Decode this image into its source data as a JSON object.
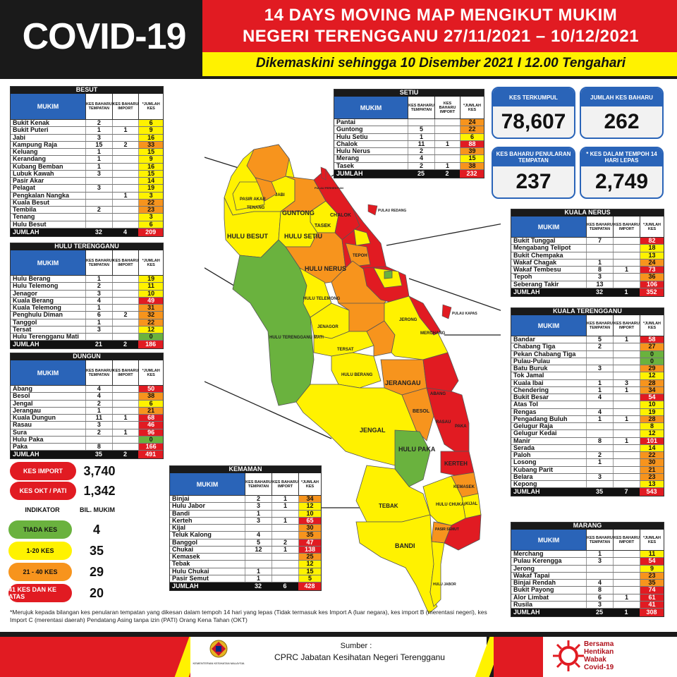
{
  "header": {
    "covid_title": "COVID-19",
    "title_line1": "14 DAYS MOVING MAP MENGIKUT MUKIM",
    "title_line2": "NEGERI TERENGGANU 27/11/2021 – 10/12/2021",
    "subtitle": "Dikemaskini sehingga 10 Disember 2021 I 12.00 Tengahari"
  },
  "col_headers": {
    "mukim": "MUKIM",
    "baharu_tempatan": "KES BAHARU TEMPATAN",
    "baharu_import": "KES BAHARU IMPORT",
    "jumlah": "*JUMLAH KES",
    "total_label": "JUMLAH"
  },
  "besut": {
    "title": "BESUT",
    "rows": [
      {
        "mukim": "Bukit Kenak",
        "tempatan": "2",
        "import": "",
        "jumlah": "6",
        "color": "#fff200"
      },
      {
        "mukim": "Bukit Puteri",
        "tempatan": "1",
        "import": "1",
        "jumlah": "9",
        "color": "#fff200"
      },
      {
        "mukim": "Jabi",
        "tempatan": "3",
        "import": "",
        "jumlah": "16",
        "color": "#fff200"
      },
      {
        "mukim": "Kampung Raja",
        "tempatan": "15",
        "import": "2",
        "jumlah": "33",
        "color": "#f7941d"
      },
      {
        "mukim": "Keluang",
        "tempatan": "1",
        "import": "",
        "jumlah": "15",
        "color": "#fff200"
      },
      {
        "mukim": "Kerandang",
        "tempatan": "1",
        "import": "",
        "jumlah": "9",
        "color": "#fff200"
      },
      {
        "mukim": "Kubang Bemban",
        "tempatan": "1",
        "import": "",
        "jumlah": "16",
        "color": "#fff200"
      },
      {
        "mukim": "Lubuk Kawah",
        "tempatan": "3",
        "import": "",
        "jumlah": "15",
        "color": "#fff200"
      },
      {
        "mukim": "Pasir Akar",
        "tempatan": "",
        "import": "",
        "jumlah": "14",
        "color": "#fff200"
      },
      {
        "mukim": "Pelagat",
        "tempatan": "3",
        "import": "",
        "jumlah": "19",
        "color": "#fff200"
      },
      {
        "mukim": "Pengkalan Nangka",
        "tempatan": "",
        "import": "1",
        "jumlah": "3",
        "color": "#fff200"
      },
      {
        "mukim": "Kuala Besut",
        "tempatan": "",
        "import": "",
        "jumlah": "22",
        "color": "#f7941d"
      },
      {
        "mukim": "Tembila",
        "tempatan": "2",
        "import": "",
        "jumlah": "23",
        "color": "#f7941d"
      },
      {
        "mukim": "Tenang",
        "tempatan": "",
        "import": "",
        "jumlah": "3",
        "color": "#fff200"
      },
      {
        "mukim": "Hulu Besut",
        "tempatan": "",
        "import": "",
        "jumlah": "6",
        "color": "#fff200"
      }
    ],
    "total": {
      "tempatan": "32",
      "import": "4",
      "jumlah": "209"
    }
  },
  "hulu_terengganu": {
    "title": "HULU TERENGGANU",
    "rows": [
      {
        "mukim": "Hulu Berang",
        "tempatan": "1",
        "import": "",
        "jumlah": "19",
        "color": "#fff200"
      },
      {
        "mukim": "Hulu Telemong",
        "tempatan": "2",
        "import": "",
        "jumlah": "11",
        "color": "#fff200"
      },
      {
        "mukim": "Jenagor",
        "tempatan": "3",
        "import": "",
        "jumlah": "10",
        "color": "#fff200"
      },
      {
        "mukim": "Kuala Berang",
        "tempatan": "4",
        "import": "",
        "jumlah": "49",
        "color": "#e11b22"
      },
      {
        "mukim": "Kuala Telemong",
        "tempatan": "1",
        "import": "",
        "jumlah": "31",
        "color": "#f7941d"
      },
      {
        "mukim": "Penghulu Diman",
        "tempatan": "6",
        "import": "2",
        "jumlah": "32",
        "color": "#f7941d"
      },
      {
        "mukim": "Tanggol",
        "tempatan": "1",
        "import": "",
        "jumlah": "22",
        "color": "#f7941d"
      },
      {
        "mukim": "Tersat",
        "tempatan": "3",
        "import": "",
        "jumlah": "12",
        "color": "#fff200"
      },
      {
        "mukim": "Hulu Terengganu Mati",
        "tempatan": "",
        "import": "",
        "jumlah": "0",
        "color": "#6ab23e"
      }
    ],
    "total": {
      "tempatan": "21",
      "import": "2",
      "jumlah": "186"
    }
  },
  "dungun": {
    "title": "DUNGUN",
    "rows": [
      {
        "mukim": "Abang",
        "tempatan": "4",
        "import": "",
        "jumlah": "50",
        "color": "#e11b22"
      },
      {
        "mukim": "Besol",
        "tempatan": "4",
        "import": "",
        "jumlah": "38",
        "color": "#f7941d"
      },
      {
        "mukim": "Jengal",
        "tempatan": "2",
        "import": "",
        "jumlah": "6",
        "color": "#fff200"
      },
      {
        "mukim": "Jerangau",
        "tempatan": "1",
        "import": "",
        "jumlah": "21",
        "color": "#f7941d"
      },
      {
        "mukim": "Kuala Dungun",
        "tempatan": "11",
        "import": "1",
        "jumlah": "68",
        "color": "#e11b22"
      },
      {
        "mukim": "Rasau",
        "tempatan": "3",
        "import": "",
        "jumlah": "46",
        "color": "#e11b22"
      },
      {
        "mukim": "Sura",
        "tempatan": "2",
        "import": "1",
        "jumlah": "96",
        "color": "#e11b22"
      },
      {
        "mukim": "Hulu Paka",
        "tempatan": "",
        "import": "",
        "jumlah": "0",
        "color": "#6ab23e"
      },
      {
        "mukim": "Paka",
        "tempatan": "8",
        "import": "",
        "jumlah": "166",
        "color": "#e11b22"
      }
    ],
    "total": {
      "tempatan": "35",
      "import": "2",
      "jumlah": "491"
    }
  },
  "setiu": {
    "title": "SETIU",
    "rows": [
      {
        "mukim": "Pantai",
        "tempatan": "",
        "import": "",
        "jumlah": "24",
        "color": "#f7941d"
      },
      {
        "mukim": "Guntong",
        "tempatan": "5",
        "import": "",
        "jumlah": "22",
        "color": "#f7941d"
      },
      {
        "mukim": "Hulu Setiu",
        "tempatan": "1",
        "import": "",
        "jumlah": "6",
        "color": "#fff200"
      },
      {
        "mukim": "Chalok",
        "tempatan": "11",
        "import": "1",
        "jumlah": "88",
        "color": "#e11b22"
      },
      {
        "mukim": "Hulu Nerus",
        "tempatan": "2",
        "import": "",
        "jumlah": "39",
        "color": "#f7941d"
      },
      {
        "mukim": "Merang",
        "tempatan": "4",
        "import": "",
        "jumlah": "15",
        "color": "#fff200"
      },
      {
        "mukim": "Tasek",
        "tempatan": "2",
        "import": "1",
        "jumlah": "38",
        "color": "#f7941d"
      }
    ],
    "total": {
      "tempatan": "25",
      "import": "2",
      "jumlah": "232"
    }
  },
  "kuala_nerus": {
    "title": "KUALA NERUS",
    "rows": [
      {
        "mukim": "Bukit Tunggal",
        "tempatan": "7",
        "import": "",
        "jumlah": "82",
        "color": "#e11b22"
      },
      {
        "mukim": "Mengabang Telipot",
        "tempatan": "",
        "import": "",
        "jumlah": "18",
        "color": "#fff200"
      },
      {
        "mukim": "Bukit Chempaka",
        "tempatan": "",
        "import": "",
        "jumlah": "13",
        "color": "#fff200"
      },
      {
        "mukim": "Wakaf Chagak",
        "tempatan": "1",
        "import": "",
        "jumlah": "24",
        "color": "#f7941d"
      },
      {
        "mukim": "Wakaf Tembesu",
        "tempatan": "8",
        "import": "1",
        "jumlah": "73",
        "color": "#e11b22"
      },
      {
        "mukim": "Tepoh",
        "tempatan": "3",
        "import": "",
        "jumlah": "36",
        "color": "#f7941d"
      },
      {
        "mukim": "Seberang Takir",
        "tempatan": "13",
        "import": "",
        "jumlah": "106",
        "color": "#e11b22"
      }
    ],
    "total": {
      "tempatan": "32",
      "import": "1",
      "jumlah": "352"
    }
  },
  "kuala_terengganu": {
    "title": "KUALA TERENGGANU",
    "rows": [
      {
        "mukim": "Bandar",
        "tempatan": "5",
        "import": "1",
        "jumlah": "58",
        "color": "#e11b22"
      },
      {
        "mukim": "Chabang Tiga",
        "tempatan": "2",
        "import": "",
        "jumlah": "27",
        "color": "#f7941d"
      },
      {
        "mukim": "Pekan Chabang Tiga",
        "tempatan": "",
        "import": "",
        "jumlah": "0",
        "color": "#6ab23e"
      },
      {
        "mukim": "Pulau-Pulau",
        "tempatan": "",
        "import": "",
        "jumlah": "0",
        "color": "#6ab23e"
      },
      {
        "mukim": "Batu Buruk",
        "tempatan": "3",
        "import": "",
        "jumlah": "29",
        "color": "#f7941d"
      },
      {
        "mukim": "Tok Jamal",
        "tempatan": "",
        "import": "",
        "jumlah": "12",
        "color": "#fff200"
      },
      {
        "mukim": "Kuala Ibai",
        "tempatan": "1",
        "import": "3",
        "jumlah": "28",
        "color": "#f7941d"
      },
      {
        "mukim": "Chendering",
        "tempatan": "1",
        "import": "1",
        "jumlah": "34",
        "color": "#f7941d"
      },
      {
        "mukim": "Bukit Besar",
        "tempatan": "4",
        "import": "",
        "jumlah": "54",
        "color": "#e11b22"
      },
      {
        "mukim": "Atas Tol",
        "tempatan": "",
        "import": "",
        "jumlah": "10",
        "color": "#fff200"
      },
      {
        "mukim": "Rengas",
        "tempatan": "4",
        "import": "",
        "jumlah": "19",
        "color": "#fff200"
      },
      {
        "mukim": "Pengadang Buluh",
        "tempatan": "1",
        "import": "1",
        "jumlah": "28",
        "color": "#f7941d"
      },
      {
        "mukim": "Gelugur Raja",
        "tempatan": "",
        "import": "",
        "jumlah": "8",
        "color": "#fff200"
      },
      {
        "mukim": "Gelugur Kedai",
        "tempatan": "",
        "import": "",
        "jumlah": "12",
        "color": "#fff200"
      },
      {
        "mukim": "Manir",
        "tempatan": "8",
        "import": "1",
        "jumlah": "101",
        "color": "#e11b22"
      },
      {
        "mukim": "Serada",
        "tempatan": "",
        "import": "",
        "jumlah": "14",
        "color": "#fff200"
      },
      {
        "mukim": "Paloh",
        "tempatan": "2",
        "import": "",
        "jumlah": "22",
        "color": "#f7941d"
      },
      {
        "mukim": "Losong",
        "tempatan": "1",
        "import": "",
        "jumlah": "30",
        "color": "#f7941d"
      },
      {
        "mukim": "Kubang Parit",
        "tempatan": "",
        "import": "",
        "jumlah": "21",
        "color": "#f7941d"
      },
      {
        "mukim": "Belara",
        "tempatan": "3",
        "import": "",
        "jumlah": "23",
        "color": "#f7941d"
      },
      {
        "mukim": "Kepong",
        "tempatan": "",
        "import": "",
        "jumlah": "13",
        "color": "#fff200"
      }
    ],
    "total": {
      "tempatan": "35",
      "import": "7",
      "jumlah": "543"
    }
  },
  "marang": {
    "title": "MARANG",
    "rows": [
      {
        "mukim": "Merchang",
        "tempatan": "1",
        "import": "",
        "jumlah": "11",
        "color": "#fff200"
      },
      {
        "mukim": "Pulau Kerengga",
        "tempatan": "3",
        "import": "",
        "jumlah": "54",
        "color": "#e11b22"
      },
      {
        "mukim": "Jerong",
        "tempatan": "",
        "import": "",
        "jumlah": "9",
        "color": "#fff200"
      },
      {
        "mukim": "Wakaf Tapai",
        "tempatan": "",
        "import": "",
        "jumlah": "23",
        "color": "#f7941d"
      },
      {
        "mukim": "Binjai Rendah",
        "tempatan": "4",
        "import": "",
        "jumlah": "35",
        "color": "#f7941d"
      },
      {
        "mukim": "Bukit Payong",
        "tempatan": "8",
        "import": "",
        "jumlah": "74",
        "color": "#e11b22"
      },
      {
        "mukim": "Alor Limbat",
        "tempatan": "6",
        "import": "1",
        "jumlah": "61",
        "color": "#e11b22"
      },
      {
        "mukim": "Rusila",
        "tempatan": "3",
        "import": "",
        "jumlah": "41",
        "color": "#e11b22"
      }
    ],
    "total": {
      "tempatan": "25",
      "import": "1",
      "jumlah": "308"
    }
  },
  "kemaman": {
    "title": "KEMAMAN",
    "rows": [
      {
        "mukim": "Binjai",
        "tempatan": "2",
        "import": "1",
        "jumlah": "34",
        "color": "#f7941d"
      },
      {
        "mukim": "Hulu Jabor",
        "tempatan": "3",
        "import": "1",
        "jumlah": "12",
        "color": "#fff200"
      },
      {
        "mukim": "Bandi",
        "tempatan": "1",
        "import": "",
        "jumlah": "10",
        "color": "#fff200"
      },
      {
        "mukim": "Kerteh",
        "tempatan": "3",
        "import": "1",
        "jumlah": "65",
        "color": "#e11b22"
      },
      {
        "mukim": "Kijal",
        "tempatan": "",
        "import": "",
        "jumlah": "30",
        "color": "#f7941d"
      },
      {
        "mukim": "Teluk Kalong",
        "tempatan": "4",
        "import": "",
        "jumlah": "35",
        "color": "#f7941d"
      },
      {
        "mukim": "Banggol",
        "tempatan": "5",
        "import": "2",
        "jumlah": "47",
        "color": "#e11b22"
      },
      {
        "mukim": "Chukai",
        "tempatan": "12",
        "import": "1",
        "jumlah": "138",
        "color": "#e11b22"
      },
      {
        "mukim": "Kemasek",
        "tempatan": "",
        "import": "",
        "jumlah": "25",
        "color": "#f7941d"
      },
      {
        "mukim": "Tebak",
        "tempatan": "",
        "import": "",
        "jumlah": "12",
        "color": "#fff200"
      },
      {
        "mukim": "Hulu Chukai",
        "tempatan": "1",
        "import": "",
        "jumlah": "15",
        "color": "#fff200"
      },
      {
        "mukim": "Pasir Semut",
        "tempatan": "1",
        "import": "",
        "jumlah": "5",
        "color": "#fff200"
      }
    ],
    "total": {
      "tempatan": "32",
      "import": "6",
      "jumlah": "428"
    }
  },
  "stats": {
    "kes_terkumpul": {
      "label": "KES TERKUMPUL",
      "value": "78,607"
    },
    "jumlah_kes_baharu": {
      "label": "JUMLAH KES BAHARU",
      "value": "262"
    },
    "kes_baharu_penularan": {
      "label": "KES BAHARU PENULARAN TEMPATAN",
      "value": "237"
    },
    "kes_dalam_tempoh": {
      "label": "* KES DALAM TEMPOH 14 HARI LEPAS",
      "value": "2,749"
    }
  },
  "extra": {
    "kes_import_label": "KES IMPORT",
    "kes_import_value": "3,740",
    "kes_okt_label": "KES OKT / PATI",
    "kes_okt_value": "1,342"
  },
  "legend": {
    "indikator": "INDIKATOR",
    "bil_mukim": "BIL. MUKIM",
    "items": [
      {
        "label": "TIADA KES",
        "value": "4",
        "color": "#6ab23e",
        "text_color": "#111"
      },
      {
        "label": "1-20 KES",
        "value": "35",
        "color": "#fff200",
        "text_color": "#111"
      },
      {
        "label": "21 - 40 KES",
        "value": "29",
        "color": "#f7941d",
        "text_color": "#111"
      },
      {
        "label": "41 KES DAN KE ATAS",
        "value": "20",
        "color": "#e11b22",
        "text_color": "#fff"
      }
    ]
  },
  "map_labels": {
    "guntong": "GUNTONG",
    "tasek": "TASEK",
    "chalok": "CHALOK",
    "hulu_besut": "HULU BESUT",
    "hulu_setiu": "HULU SETIU",
    "hulu_nerus": "HULU NERUS",
    "tepoh": "TEPOH",
    "hulu_telemong": "HULU TELEMONG",
    "hulu_terengganu_mati": "HULU TERENGGANU MATI",
    "jenagor": "JENAGOR",
    "tersat": "TERSAT",
    "hulu_berang": "HULU BERANG",
    "merchang": "MERCHANG",
    "jerangau": "JERANGAU",
    "abang": "ABANG",
    "besol": "BESOL",
    "rasau": "RASAU",
    "paka": "PAKA",
    "jengal": "JENGAL",
    "hulu_paka": "HULU PAKA",
    "kerteh": "KERTEH",
    "tebak": "TEBAK",
    "bandi": "BANDI",
    "hulu_chukai": "HULU CHUKAI",
    "kemasek": "KEMASEK",
    "kijal": "KIJAL",
    "jerong": "JERONG",
    "tenang": "TENANG",
    "jabi": "JABI",
    "pasir_akar": "PASIR AKAR",
    "pulau_redang": "PULAU REDANG",
    "pulau_kapas": "PULAU KAPAS",
    "pulau_perhentian": "PULAU PERHENTIAN",
    "hulu_jabor": "HULU JABOR",
    "pasir_semut": "PASIR SEMUT"
  },
  "footer": {
    "sumber_label": "Sumber :",
    "sumber_text": "CPRC Jabatan Kesihatan Negeri  Terengganu",
    "ministry": "KEMENTERIAN KESIHATAN MALAYSIA",
    "campaign_line1": "Bersama",
    "campaign_line2": "Hentikan",
    "campaign_line3": "Wabak",
    "campaign_line4": "Covid-19"
  },
  "footnote": "*Merujuk kepada bilangan kes penularan tempatan yang dikesan dalam tempoh 14 hari yang lepas (Tidak termasuk kes Import A (luar negara), kes import B (merentasi negeri), kes Import C (merentasi daerah) Pendatang Asing tanpa izin (PATI) Orang Kena Tahan (OKT)"
}
